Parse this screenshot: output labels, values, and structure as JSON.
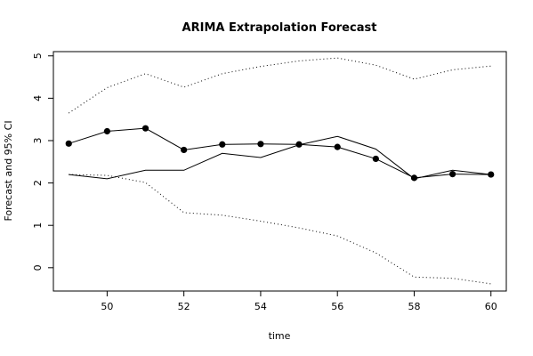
{
  "chart_data": {
    "type": "line",
    "title": "ARIMA Extrapolation Forecast",
    "xlabel": "time",
    "ylabel": "Forecast and 95% CI",
    "xlim": [
      48.6,
      60.4
    ],
    "ylim": [
      -0.55,
      5.1
    ],
    "x_ticks": [
      50,
      52,
      54,
      56,
      58,
      60
    ],
    "y_ticks": [
      0,
      1,
      2,
      3,
      4,
      5
    ],
    "grid": false,
    "legend": "none",
    "x": [
      49,
      50,
      51,
      52,
      53,
      54,
      55,
      56,
      57,
      58,
      59,
      60
    ],
    "series": [
      {
        "style": "solid",
        "values": [
          2.2,
          2.1,
          2.3,
          2.3,
          2.7,
          2.6,
          2.9,
          3.1,
          2.8,
          2.1,
          2.3,
          2.2
        ]
      },
      {
        "style": "line+points",
        "values": [
          2.93,
          3.22,
          3.29,
          2.78,
          2.91,
          2.92,
          2.91,
          2.85,
          2.57,
          2.12,
          2.21,
          2.2
        ]
      },
      {
        "style": "dotted",
        "values": [
          3.65,
          4.25,
          4.58,
          4.26,
          4.58,
          4.75,
          4.88,
          4.95,
          4.78,
          4.45,
          4.67,
          4.76
        ]
      },
      {
        "style": "dotted",
        "values": [
          2.2,
          2.18,
          2.01,
          1.3,
          1.24,
          1.1,
          0.94,
          0.75,
          0.35,
          -0.22,
          -0.25,
          -0.38
        ]
      }
    ],
    "colors": {
      "line": "#000000",
      "background": "#ffffff"
    }
  }
}
